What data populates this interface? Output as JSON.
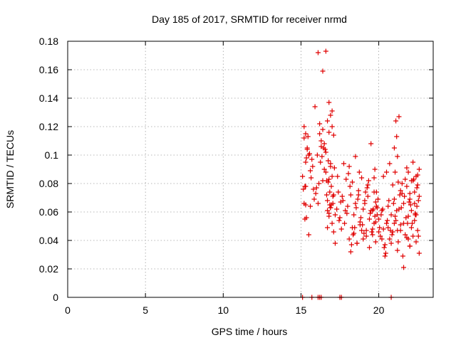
{
  "chart_data": {
    "type": "scatter",
    "title": "Day 185 of 2017, SRMTID for receiver nrmd",
    "xlabel": "GPS time / hours",
    "ylabel": "SRMTID / TECUs",
    "xlim": [
      0,
      23.5
    ],
    "ylim": [
      0,
      0.18
    ],
    "xticks": [
      0,
      5,
      10,
      15,
      20
    ],
    "xtick_labels": [
      "0",
      "5",
      "10",
      "15",
      "20"
    ],
    "yticks": [
      0,
      0.02,
      0.04,
      0.06,
      0.08,
      0.1,
      0.12,
      0.14,
      0.16,
      0.18
    ],
    "ytick_labels": [
      "0",
      "0.02",
      "0.04",
      "0.06",
      "0.08",
      "0.1",
      "0.12",
      "0.14",
      "0.16",
      "0.18"
    ],
    "grid": true,
    "marker": "+",
    "series": [
      {
        "name": "SRMTID",
        "color": "#e00000",
        "x": [
          15.1,
          15.15,
          15.2,
          15.25,
          15.3,
          15.35,
          15.4,
          15.45,
          15.2,
          15.3,
          15.5,
          15.3,
          15.25,
          15.4,
          15.3,
          15.2,
          15.5,
          15.35,
          15.9,
          16.0,
          16.05,
          16.1,
          16.15,
          16.2,
          16.25,
          16.3,
          16.35,
          16.4,
          16.45,
          16.5,
          16.55,
          16.6,
          16.65,
          16.7,
          16.75,
          16.8,
          16.85,
          16.9,
          16.95,
          17.0,
          17.05,
          17.1,
          17.15,
          17.2,
          16.1,
          16.4,
          16.6,
          16.8,
          16.9,
          17.0,
          17.1,
          16.3,
          16.5,
          16.7,
          16.2,
          16.6,
          16.9,
          17.0,
          16.4,
          16.8,
          17.3,
          17.4,
          17.5,
          17.6,
          17.7,
          17.8,
          17.9,
          18.0,
          18.1,
          18.2,
          18.3,
          18.4,
          18.5,
          18.6,
          18.7,
          18.8,
          18.9,
          19.0,
          19.1,
          19.2,
          19.3,
          19.4,
          19.5,
          19.6,
          19.7,
          19.8,
          19.9,
          17.35,
          17.55,
          17.75,
          17.95,
          18.15,
          18.35,
          18.55,
          18.75,
          18.95,
          19.15,
          19.35,
          19.55,
          19.75,
          19.95,
          17.45,
          17.85,
          18.25,
          18.65,
          19.05,
          19.45,
          19.85,
          17.65,
          18.05,
          18.45,
          18.85,
          19.25,
          19.65,
          18.1,
          18.3,
          18.5,
          18.7,
          18.9,
          19.1,
          19.3,
          19.5,
          19.7,
          19.9,
          20.0,
          20.1,
          20.2,
          20.3,
          20.4,
          20.5,
          20.6,
          20.7,
          20.8,
          20.9,
          21.0,
          21.1,
          21.2,
          21.3,
          21.4,
          21.5,
          21.6,
          21.7,
          21.8,
          21.9,
          22.0,
          22.1,
          22.2,
          22.3,
          22.4,
          22.5,
          22.6,
          20.05,
          20.25,
          20.45,
          20.65,
          20.85,
          21.05,
          21.25,
          21.45,
          21.65,
          21.85,
          22.05,
          22.25,
          22.45,
          20.15,
          20.35,
          20.55,
          20.75,
          20.95,
          21.15,
          21.35,
          21.55,
          21.75,
          21.95,
          22.15,
          22.35,
          22.55,
          21.0,
          21.1,
          21.2,
          21.15,
          21.05,
          21.3,
          21.25,
          21.8,
          21.9,
          22.0,
          22.1,
          22.2,
          22.3,
          22.4,
          22.5,
          22.6,
          21.7,
          22.45,
          22.55,
          22.35,
          19.6,
          19.7,
          19.75,
          19.8,
          19.85,
          20.3,
          20.5,
          20.7,
          20.9,
          21.4,
          21.5,
          21.6,
          16.7,
          16.75,
          16.8,
          16.85,
          16.95,
          17.05,
          16.65,
          16.9,
          15.6,
          15.7,
          15.8,
          15.65,
          15.75,
          15.85,
          15.55,
          15.95,
          15.6,
          20.2,
          20.4,
          20.6,
          20.8,
          21.0,
          21.2,
          21.4,
          21.6,
          21.8,
          22.0,
          18.2,
          18.4,
          18.6,
          18.8,
          19.0,
          19.2,
          19.4,
          19.6,
          19.8,
          20.0,
          22.6,
          22.5,
          22.4,
          22.3,
          22.2,
          22.1,
          22.0,
          21.9,
          17.2,
          17.1,
          17.0,
          16.9,
          16.8,
          16.7,
          15.1,
          15.7,
          16.1,
          16.2,
          16.3,
          17.5,
          17.6,
          20.8
        ],
        "y": [
          0.085,
          0.076,
          0.066,
          0.078,
          0.115,
          0.098,
          0.105,
          0.113,
          0.112,
          0.065,
          0.044,
          0.095,
          0.055,
          0.104,
          0.078,
          0.12,
          0.1,
          0.056,
          0.134,
          0.077,
          0.1,
          0.066,
          0.08,
          0.122,
          0.095,
          0.11,
          0.099,
          0.118,
          0.105,
          0.09,
          0.104,
          0.088,
          0.072,
          0.061,
          0.096,
          0.083,
          0.065,
          0.092,
          0.078,
          0.085,
          0.066,
          0.072,
          0.091,
          0.058,
          0.172,
          0.159,
          0.173,
          0.137,
          0.128,
          0.12,
          0.114,
          0.106,
          0.108,
          0.124,
          0.115,
          0.102,
          0.094,
          0.131,
          0.082,
          0.116,
          0.062,
          0.074,
          0.056,
          0.048,
          0.068,
          0.052,
          0.083,
          0.064,
          0.041,
          0.072,
          0.049,
          0.058,
          0.066,
          0.038,
          0.075,
          0.053,
          0.047,
          0.062,
          0.068,
          0.043,
          0.071,
          0.055,
          0.061,
          0.048,
          0.052,
          0.067,
          0.058,
          0.085,
          0.067,
          0.094,
          0.059,
          0.078,
          0.044,
          0.063,
          0.088,
          0.051,
          0.074,
          0.082,
          0.046,
          0.057,
          0.069,
          0.054,
          0.061,
          0.037,
          0.069,
          0.045,
          0.059,
          0.064,
          0.071,
          0.087,
          0.049,
          0.056,
          0.077,
          0.062,
          0.092,
          0.081,
          0.099,
          0.072,
          0.084,
          0.066,
          0.079,
          0.108,
          0.074,
          0.063,
          0.055,
          0.043,
          0.061,
          0.048,
          0.037,
          0.052,
          0.064,
          0.041,
          0.058,
          0.046,
          0.069,
          0.054,
          0.047,
          0.062,
          0.051,
          0.073,
          0.066,
          0.044,
          0.078,
          0.057,
          0.069,
          0.061,
          0.082,
          0.074,
          0.058,
          0.086,
          0.071,
          0.049,
          0.062,
          0.031,
          0.068,
          0.044,
          0.057,
          0.039,
          0.063,
          0.071,
          0.052,
          0.065,
          0.083,
          0.077,
          0.058,
          0.035,
          0.054,
          0.047,
          0.066,
          0.061,
          0.072,
          0.029,
          0.056,
          0.067,
          0.052,
          0.059,
          0.043,
          0.105,
          0.124,
          0.099,
          0.113,
          0.088,
          0.127,
          0.081,
          0.091,
          0.088,
          0.073,
          0.082,
          0.095,
          0.066,
          0.085,
          0.079,
          0.09,
          0.083,
          0.064,
          0.068,
          0.058,
          0.061,
          0.084,
          0.09,
          0.053,
          0.074,
          0.085,
          0.088,
          0.094,
          0.079,
          0.075,
          0.08,
          0.052,
          0.068,
          0.081,
          0.059,
          0.074,
          0.065,
          0.071,
          0.082,
          0.063,
          0.089,
          0.097,
          0.076,
          0.084,
          0.092,
          0.069,
          0.101,
          0.073,
          0.064,
          0.041,
          0.029,
          0.049,
          0.038,
          0.052,
          0.033,
          0.047,
          0.021,
          0.042,
          0.036,
          0.032,
          0.045,
          0.038,
          0.051,
          0.041,
          0.047,
          0.035,
          0.044,
          0.039,
          0.046,
          0.031,
          0.047,
          0.039,
          0.054,
          0.043,
          0.049,
          0.036,
          0.041,
          0.038,
          0.046,
          0.052,
          0.063,
          0.057,
          0.049,
          0.0,
          0.0,
          0.0,
          0.0,
          0.0,
          0.0,
          0.0,
          0.0
        ]
      }
    ]
  }
}
